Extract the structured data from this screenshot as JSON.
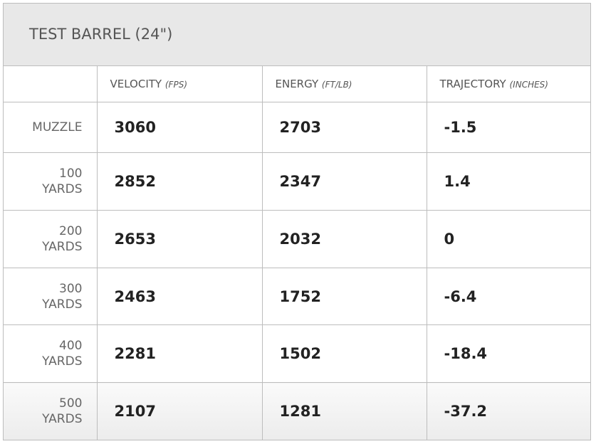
{
  "header": {
    "title": "TEST BARREL (24\")"
  },
  "table": {
    "columns": [
      {
        "name": "VELOCITY",
        "unit": "(FPS)"
      },
      {
        "name": "ENERGY",
        "unit": "(FT/LB)"
      },
      {
        "name": "TRAJECTORY",
        "unit": "(INCHES)"
      }
    ],
    "rows": [
      {
        "label": "MUZZLE",
        "cells": [
          "3060",
          "2703",
          "-1.5"
        ]
      },
      {
        "label": "100 YARDS",
        "cells": [
          "2852",
          "2347",
          "1.4"
        ]
      },
      {
        "label": "200 YARDS",
        "cells": [
          "2653",
          "2032",
          "0"
        ]
      },
      {
        "label": "300 YARDS",
        "cells": [
          "2463",
          "1752",
          "-6.4"
        ]
      },
      {
        "label": "400 YARDS",
        "cells": [
          "2281",
          "1502",
          "-18.4"
        ]
      },
      {
        "label": "500 YARDS",
        "cells": [
          "2107",
          "1281",
          "-37.2"
        ]
      }
    ]
  }
}
